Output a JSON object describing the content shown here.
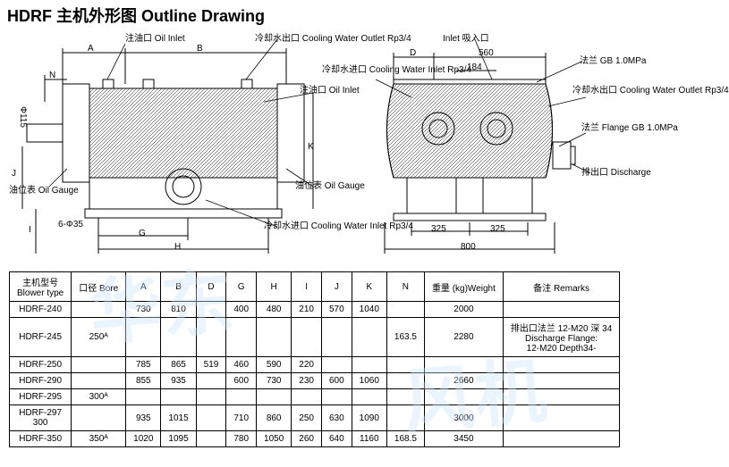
{
  "title": "HDRF 主机外形图 Outline Drawing",
  "left_drawing": {
    "labels": {
      "oil_inlet": "注油口\nOil Inlet",
      "cooling_outlet": "冷却水出口\nCooling Water Outlet\nRp3/4",
      "oil_inlet2": "注油口\nOil Inlet",
      "oil_gauge": "油位表\nOil Gauge",
      "oil_gauge2": "油位表\nOil Gauge",
      "cooling_inlet": "冷却水进口\nCooling Water Inlet\nRp3/4"
    },
    "dims": {
      "A": "A",
      "B": "B",
      "N": "N",
      "J": "J",
      "I": "I",
      "G": "G",
      "H": "H",
      "K": "K",
      "d115": "Φ115",
      "d35": "6-Φ35"
    }
  },
  "right_drawing": {
    "labels": {
      "inlet": "Inlet 吸入口",
      "flange1": "法兰\nGB 1.0MPa",
      "cooling_inlet": "冷却水进口\nCooling Water Inlet\nRp3/4",
      "cooling_outlet": "冷却水出口\nCooling Water Outlet\nRp3/4",
      "flange2": "法兰\nFlange\nGB 1.0MPa",
      "discharge": "排出口\nDischarge"
    },
    "dims": {
      "D": "D",
      "d560": "560",
      "d184": "184",
      "d325a": "325",
      "d325b": "325",
      "d800": "800"
    }
  },
  "table": {
    "headers": [
      "主机型号\nBlower type",
      "口径 Bore",
      "A",
      "B",
      "D",
      "G",
      "H",
      "I",
      "J",
      "K",
      "N",
      "重量 (kg)Weight",
      "备注 Remarks"
    ],
    "rows": [
      [
        "HDRF-240",
        "",
        "730",
        "810",
        "",
        "400",
        "480",
        "210",
        "570",
        "1040",
        "",
        "2000",
        ""
      ],
      [
        "HDRF-245",
        "250ᴬ",
        "",
        "",
        "",
        "",
        "",
        "",
        "",
        "",
        "163.5",
        "2280",
        "排出口法兰 12-M20 深 34\nDischarge Flange:\n12-M20 Depth34-"
      ],
      [
        "HDRF-250",
        "",
        "785",
        "865",
        "519",
        "460",
        "590",
        "220",
        "",
        "",
        "",
        "",
        ""
      ],
      [
        "HDRF-290",
        "",
        "855",
        "935",
        "",
        "600",
        "730",
        "230",
        "600",
        "1060",
        "",
        "2660",
        ""
      ],
      [
        "HDRF-295",
        "300ᴬ",
        "",
        "",
        "",
        "",
        "",
        "",
        "",
        "",
        "",
        "",
        ""
      ],
      [
        "HDRF-297\n300",
        "",
        "935",
        "1015",
        "",
        "710",
        "860",
        "250",
        "630",
        "1090",
        "",
        "3000",
        ""
      ],
      [
        "HDRF-350",
        "350ᴬ",
        "1020",
        "1095",
        "",
        "780",
        "1050",
        "260",
        "640",
        "1160",
        "168.5",
        "3450",
        ""
      ]
    ]
  },
  "style": {
    "bg": "#ffffff",
    "line": "#000000",
    "watermark": "#cce5ff",
    "table_border": "#000000",
    "title_size": 18,
    "font_size": 11
  }
}
